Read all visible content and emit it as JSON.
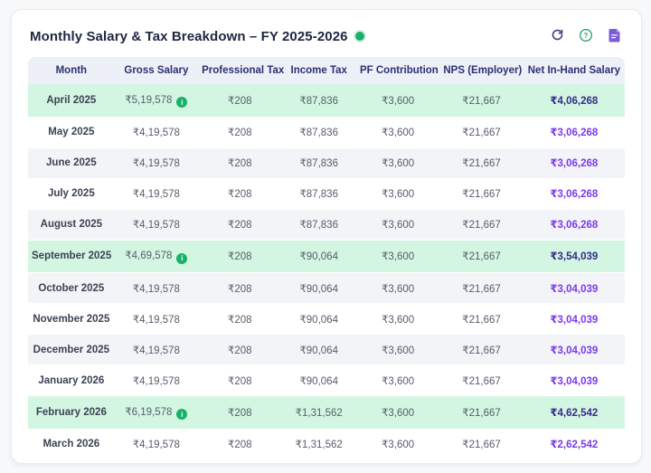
{
  "header": {
    "title": "Monthly Salary & Tax Breakdown – FY 2025-2026",
    "status_dot_color": "#17b26a",
    "actions": [
      {
        "name": "refresh",
        "color": "#3d3f7d"
      },
      {
        "name": "help",
        "color": "#2ea06e"
      },
      {
        "name": "document",
        "color": "#7c5cd6"
      }
    ]
  },
  "table": {
    "columns": [
      "Month",
      "Gross Salary",
      "Professional Tax",
      "Income Tax",
      "PF Contribution",
      "NPS (Employer)",
      "Net In-Hand Salary"
    ],
    "rows": [
      {
        "month": "April 2025",
        "gross_salary": "₹5,19,578",
        "has_info_badge": true,
        "professional_tax": "₹208",
        "income_tax": "₹87,836",
        "pf_contribution": "₹3,600",
        "nps_employer": "₹21,667",
        "net_in_hand": "₹4,06,268",
        "highlight": true
      },
      {
        "month": "May 2025",
        "gross_salary": "₹4,19,578",
        "has_info_badge": false,
        "professional_tax": "₹208",
        "income_tax": "₹87,836",
        "pf_contribution": "₹3,600",
        "nps_employer": "₹21,667",
        "net_in_hand": "₹3,06,268",
        "highlight": false
      },
      {
        "month": "June 2025",
        "gross_salary": "₹4,19,578",
        "has_info_badge": false,
        "professional_tax": "₹208",
        "income_tax": "₹87,836",
        "pf_contribution": "₹3,600",
        "nps_employer": "₹21,667",
        "net_in_hand": "₹3,06,268",
        "highlight": false
      },
      {
        "month": "July 2025",
        "gross_salary": "₹4,19,578",
        "has_info_badge": false,
        "professional_tax": "₹208",
        "income_tax": "₹87,836",
        "pf_contribution": "₹3,600",
        "nps_employer": "₹21,667",
        "net_in_hand": "₹3,06,268",
        "highlight": false
      },
      {
        "month": "August 2025",
        "gross_salary": "₹4,19,578",
        "has_info_badge": false,
        "professional_tax": "₹208",
        "income_tax": "₹87,836",
        "pf_contribution": "₹3,600",
        "nps_employer": "₹21,667",
        "net_in_hand": "₹3,06,268",
        "highlight": false
      },
      {
        "month": "September 2025",
        "gross_salary": "₹4,69,578",
        "has_info_badge": true,
        "professional_tax": "₹208",
        "income_tax": "₹90,064",
        "pf_contribution": "₹3,600",
        "nps_employer": "₹21,667",
        "net_in_hand": "₹3,54,039",
        "highlight": true
      },
      {
        "month": "October 2025",
        "gross_salary": "₹4,19,578",
        "has_info_badge": false,
        "professional_tax": "₹208",
        "income_tax": "₹90,064",
        "pf_contribution": "₹3,600",
        "nps_employer": "₹21,667",
        "net_in_hand": "₹3,04,039",
        "highlight": false
      },
      {
        "month": "November 2025",
        "gross_salary": "₹4,19,578",
        "has_info_badge": false,
        "professional_tax": "₹208",
        "income_tax": "₹90,064",
        "pf_contribution": "₹3,600",
        "nps_employer": "₹21,667",
        "net_in_hand": "₹3,04,039",
        "highlight": false
      },
      {
        "month": "December 2025",
        "gross_salary": "₹4,19,578",
        "has_info_badge": false,
        "professional_tax": "₹208",
        "income_tax": "₹90,064",
        "pf_contribution": "₹3,600",
        "nps_employer": "₹21,667",
        "net_in_hand": "₹3,04,039",
        "highlight": false
      },
      {
        "month": "January 2026",
        "gross_salary": "₹4,19,578",
        "has_info_badge": false,
        "professional_tax": "₹208",
        "income_tax": "₹90,064",
        "pf_contribution": "₹3,600",
        "nps_employer": "₹21,667",
        "net_in_hand": "₹3,04,039",
        "highlight": false
      },
      {
        "month": "February 2026",
        "gross_salary": "₹6,19,578",
        "has_info_badge": true,
        "professional_tax": "₹208",
        "income_tax": "₹1,31,562",
        "pf_contribution": "₹3,600",
        "nps_employer": "₹21,667",
        "net_in_hand": "₹4,62,542",
        "highlight": true
      },
      {
        "month": "March 2026",
        "gross_salary": "₹4,19,578",
        "has_info_badge": false,
        "professional_tax": "₹208",
        "income_tax": "₹1,31,562",
        "pf_contribution": "₹3,600",
        "nps_employer": "₹21,667",
        "net_in_hand": "₹2,62,542",
        "highlight": false
      }
    ]
  },
  "colors": {
    "highlight_row_bg": "#d3f6e2",
    "stripe_row_bg": "#f3f4f7",
    "header_row_bg": "#eef0f8",
    "header_text": "#2b3170",
    "net_value": "#7c3aed",
    "net_value_highlight": "#372a8c",
    "badge_green": "#17b26a"
  }
}
